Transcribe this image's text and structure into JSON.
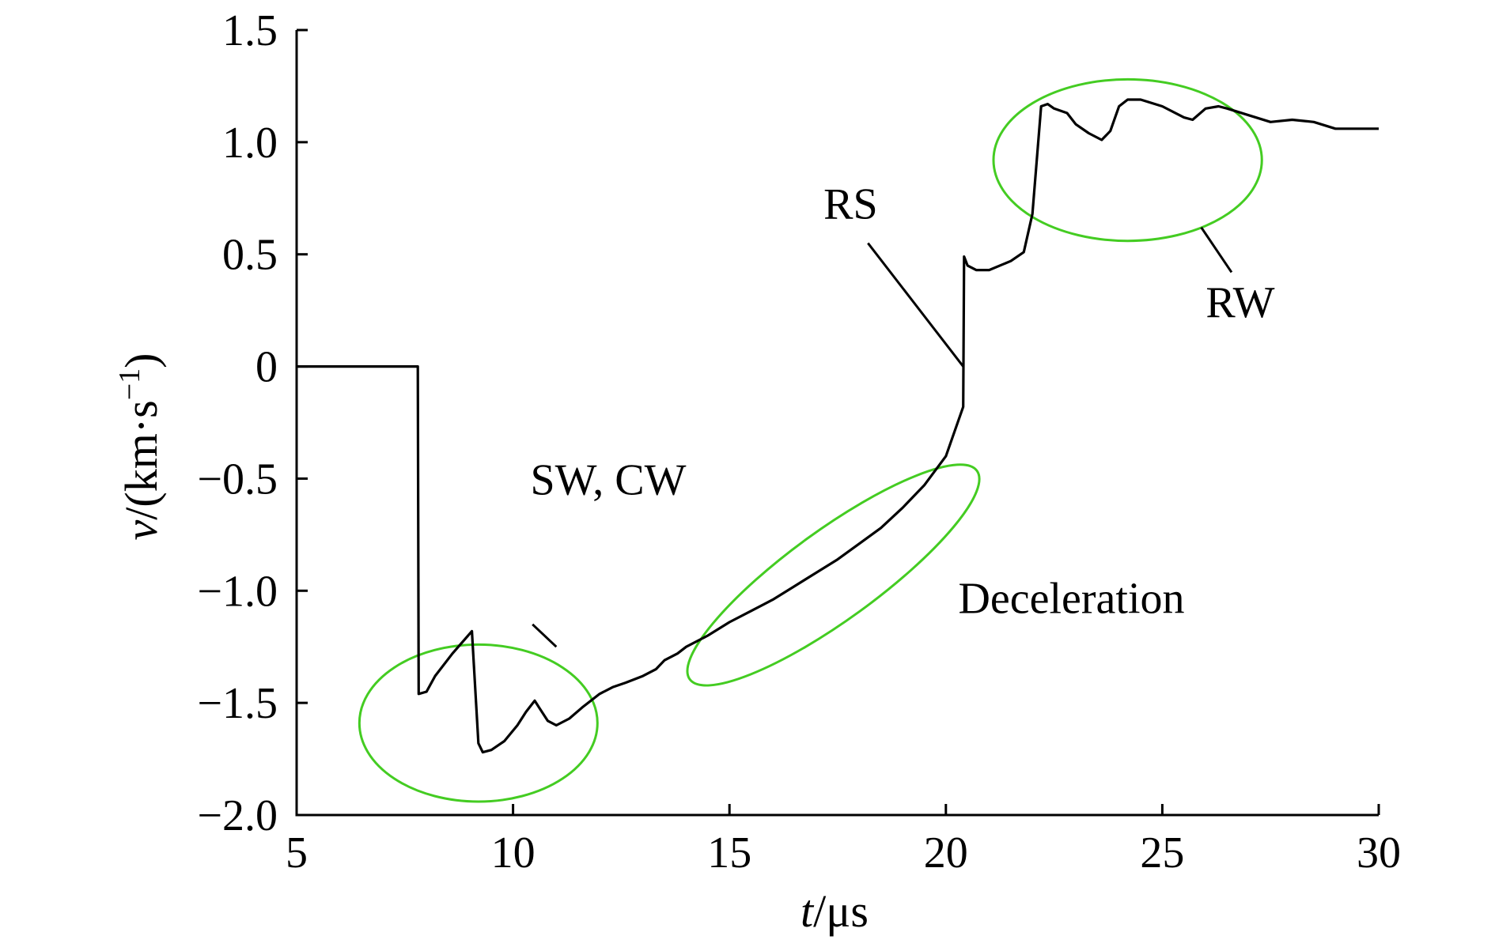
{
  "chart_data": {
    "type": "line",
    "xlabel_italic": "t",
    "xlabel_unit": "/μs",
    "ylabel_italic": "v",
    "ylabel_unit_pre": "/(km·s",
    "ylabel_unit_sup": "−1",
    "ylabel_unit_post": ")",
    "xlim": [
      5,
      30
    ],
    "ylim": [
      -2.0,
      1.5
    ],
    "x_ticks": [
      5,
      10,
      15,
      20,
      25,
      30
    ],
    "x_tick_labels": [
      "5",
      "10",
      "15",
      "20",
      "25",
      "30"
    ],
    "y_ticks": [
      -2.0,
      -1.5,
      -1.0,
      -0.5,
      0,
      0.5,
      1.0,
      1.5
    ],
    "y_tick_labels": [
      "−2.0",
      "−1.5",
      "−1.0",
      "−0.5",
      "0",
      "0.5",
      "1.0",
      "1.5"
    ],
    "grid": false,
    "line_color": "#000000",
    "highlight_color": "#44cc22",
    "series": [
      {
        "x": [
          5.0,
          7.8,
          7.82,
          8.0,
          8.2,
          8.6,
          9.05,
          9.2,
          9.3,
          9.5,
          9.8,
          10.1,
          10.3,
          10.5,
          10.6,
          10.8,
          11.0,
          11.3,
          11.6,
          12.0,
          12.3,
          12.6,
          13.0,
          13.3,
          13.5,
          13.8,
          14.0,
          14.5,
          15.0,
          15.5,
          16.0,
          16.5,
          17.0,
          17.5,
          18.0,
          18.5,
          19.0,
          19.5,
          20.0,
          20.4,
          20.42,
          20.5,
          20.7,
          21.0,
          21.5,
          21.8,
          22.0,
          22.2,
          22.35,
          22.5,
          22.8,
          23.0,
          23.3,
          23.6,
          23.8,
          24.0,
          24.2,
          24.5,
          25.0,
          25.5,
          25.7,
          26.0,
          26.3,
          26.5,
          27.0,
          27.5,
          28.0,
          28.5,
          29.0,
          29.5,
          30.0
        ],
        "y": [
          0.0,
          0.0,
          -1.46,
          -1.45,
          -1.38,
          -1.28,
          -1.18,
          -1.68,
          -1.72,
          -1.71,
          -1.67,
          -1.6,
          -1.54,
          -1.49,
          -1.52,
          -1.58,
          -1.6,
          -1.57,
          -1.52,
          -1.46,
          -1.43,
          -1.41,
          -1.38,
          -1.35,
          -1.31,
          -1.28,
          -1.25,
          -1.2,
          -1.14,
          -1.09,
          -1.04,
          -0.98,
          -0.92,
          -0.86,
          -0.79,
          -0.72,
          -0.63,
          -0.53,
          -0.4,
          -0.18,
          0.49,
          0.45,
          0.43,
          0.43,
          0.47,
          0.51,
          0.68,
          1.16,
          1.17,
          1.15,
          1.13,
          1.08,
          1.04,
          1.01,
          1.05,
          1.16,
          1.19,
          1.19,
          1.16,
          1.11,
          1.1,
          1.15,
          1.16,
          1.15,
          1.12,
          1.09,
          1.1,
          1.09,
          1.06,
          1.06,
          1.06
        ]
      }
    ],
    "annotations": [
      {
        "label": "SW, CW",
        "ellipse": {
          "cx": 9.2,
          "cy": -1.59,
          "rx": 2.75,
          "ry": 0.35,
          "rot": 0
        },
        "text_at": [
          12.2,
          -0.57
        ],
        "leader": [
          [
            10.45,
            -1.15
          ],
          [
            11.0,
            -1.25
          ]
        ]
      },
      {
        "label": "Deceleration",
        "ellipse": {
          "cx": 17.4,
          "cy": -0.93,
          "rx": 4.1,
          "ry": 0.2,
          "rot": -36
        },
        "text_at": [
          22.9,
          -1.1
        ],
        "leader": null
      },
      {
        "label": "RS",
        "ellipse": null,
        "text_at": [
          17.8,
          0.66
        ],
        "leader": [
          [
            18.2,
            0.55
          ],
          [
            20.4,
            0.0
          ]
        ]
      },
      {
        "label": "RW",
        "ellipse": {
          "cx": 24.2,
          "cy": 0.92,
          "rx": 3.1,
          "ry": 0.36,
          "rot": 0
        },
        "text_at": [
          26.8,
          0.22
        ],
        "leader": [
          [
            25.9,
            0.62
          ],
          [
            26.6,
            0.42
          ]
        ]
      }
    ]
  }
}
